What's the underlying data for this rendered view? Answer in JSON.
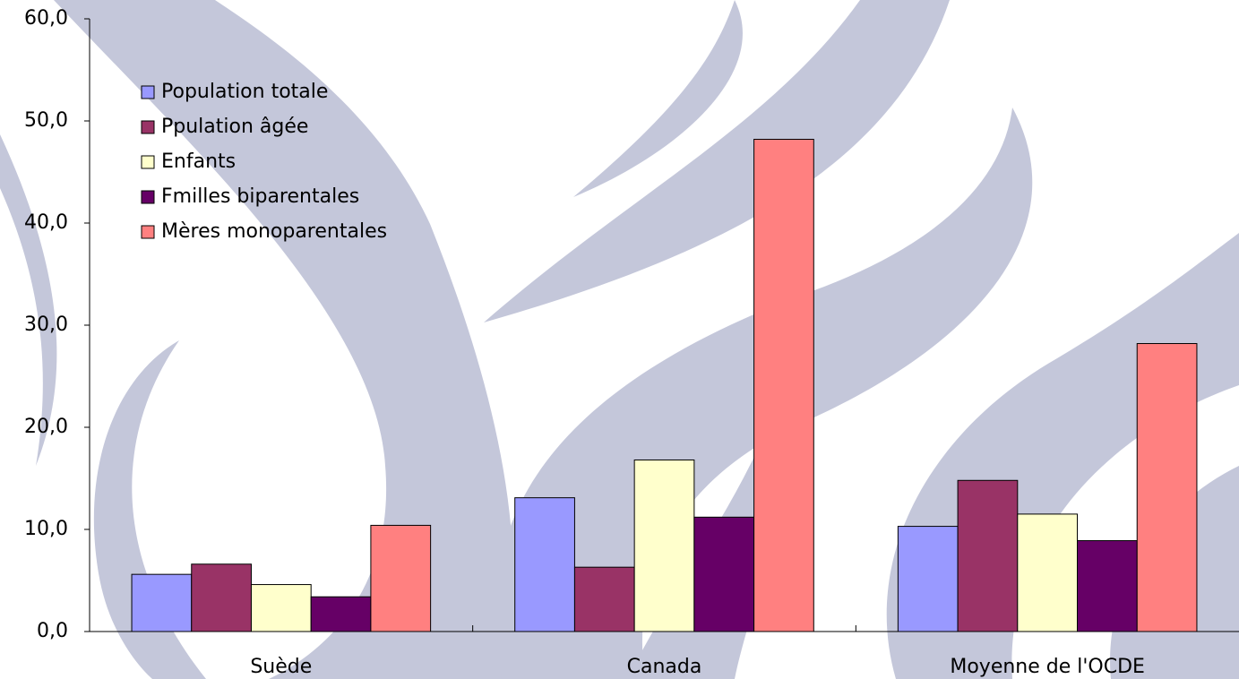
{
  "chart_data": {
    "type": "bar",
    "categories": [
      "Suède",
      "Canada",
      "Moyenne de l'OCDE"
    ],
    "series": [
      {
        "name": "Population totale",
        "color": "#9999ff",
        "values": [
          5.6,
          13.1,
          10.3
        ]
      },
      {
        "name": "Ppulation âgée",
        "color": "#993366",
        "values": [
          6.6,
          6.3,
          14.8
        ]
      },
      {
        "name": "Enfants",
        "color": "#ffffcc",
        "values": [
          4.6,
          16.8,
          11.5
        ]
      },
      {
        "name": "Fmilles biparentales",
        "color": "#660066",
        "values": [
          3.4,
          11.2,
          8.9
        ]
      },
      {
        "name": "Mères monoparentales",
        "color": "#ff8080",
        "values": [
          10.4,
          48.2,
          28.2
        ]
      }
    ],
    "ylim": [
      0,
      60
    ],
    "yticks": [
      {
        "value": 0,
        "label": "0,0"
      },
      {
        "value": 10,
        "label": "10,0"
      },
      {
        "value": 20,
        "label": "20,0"
      },
      {
        "value": 30,
        "label": "30,0"
      },
      {
        "value": 40,
        "label": "40,0"
      },
      {
        "value": 50,
        "label": "50,0"
      },
      {
        "value": 60,
        "label": "60,0"
      }
    ],
    "legend": "upper left"
  }
}
